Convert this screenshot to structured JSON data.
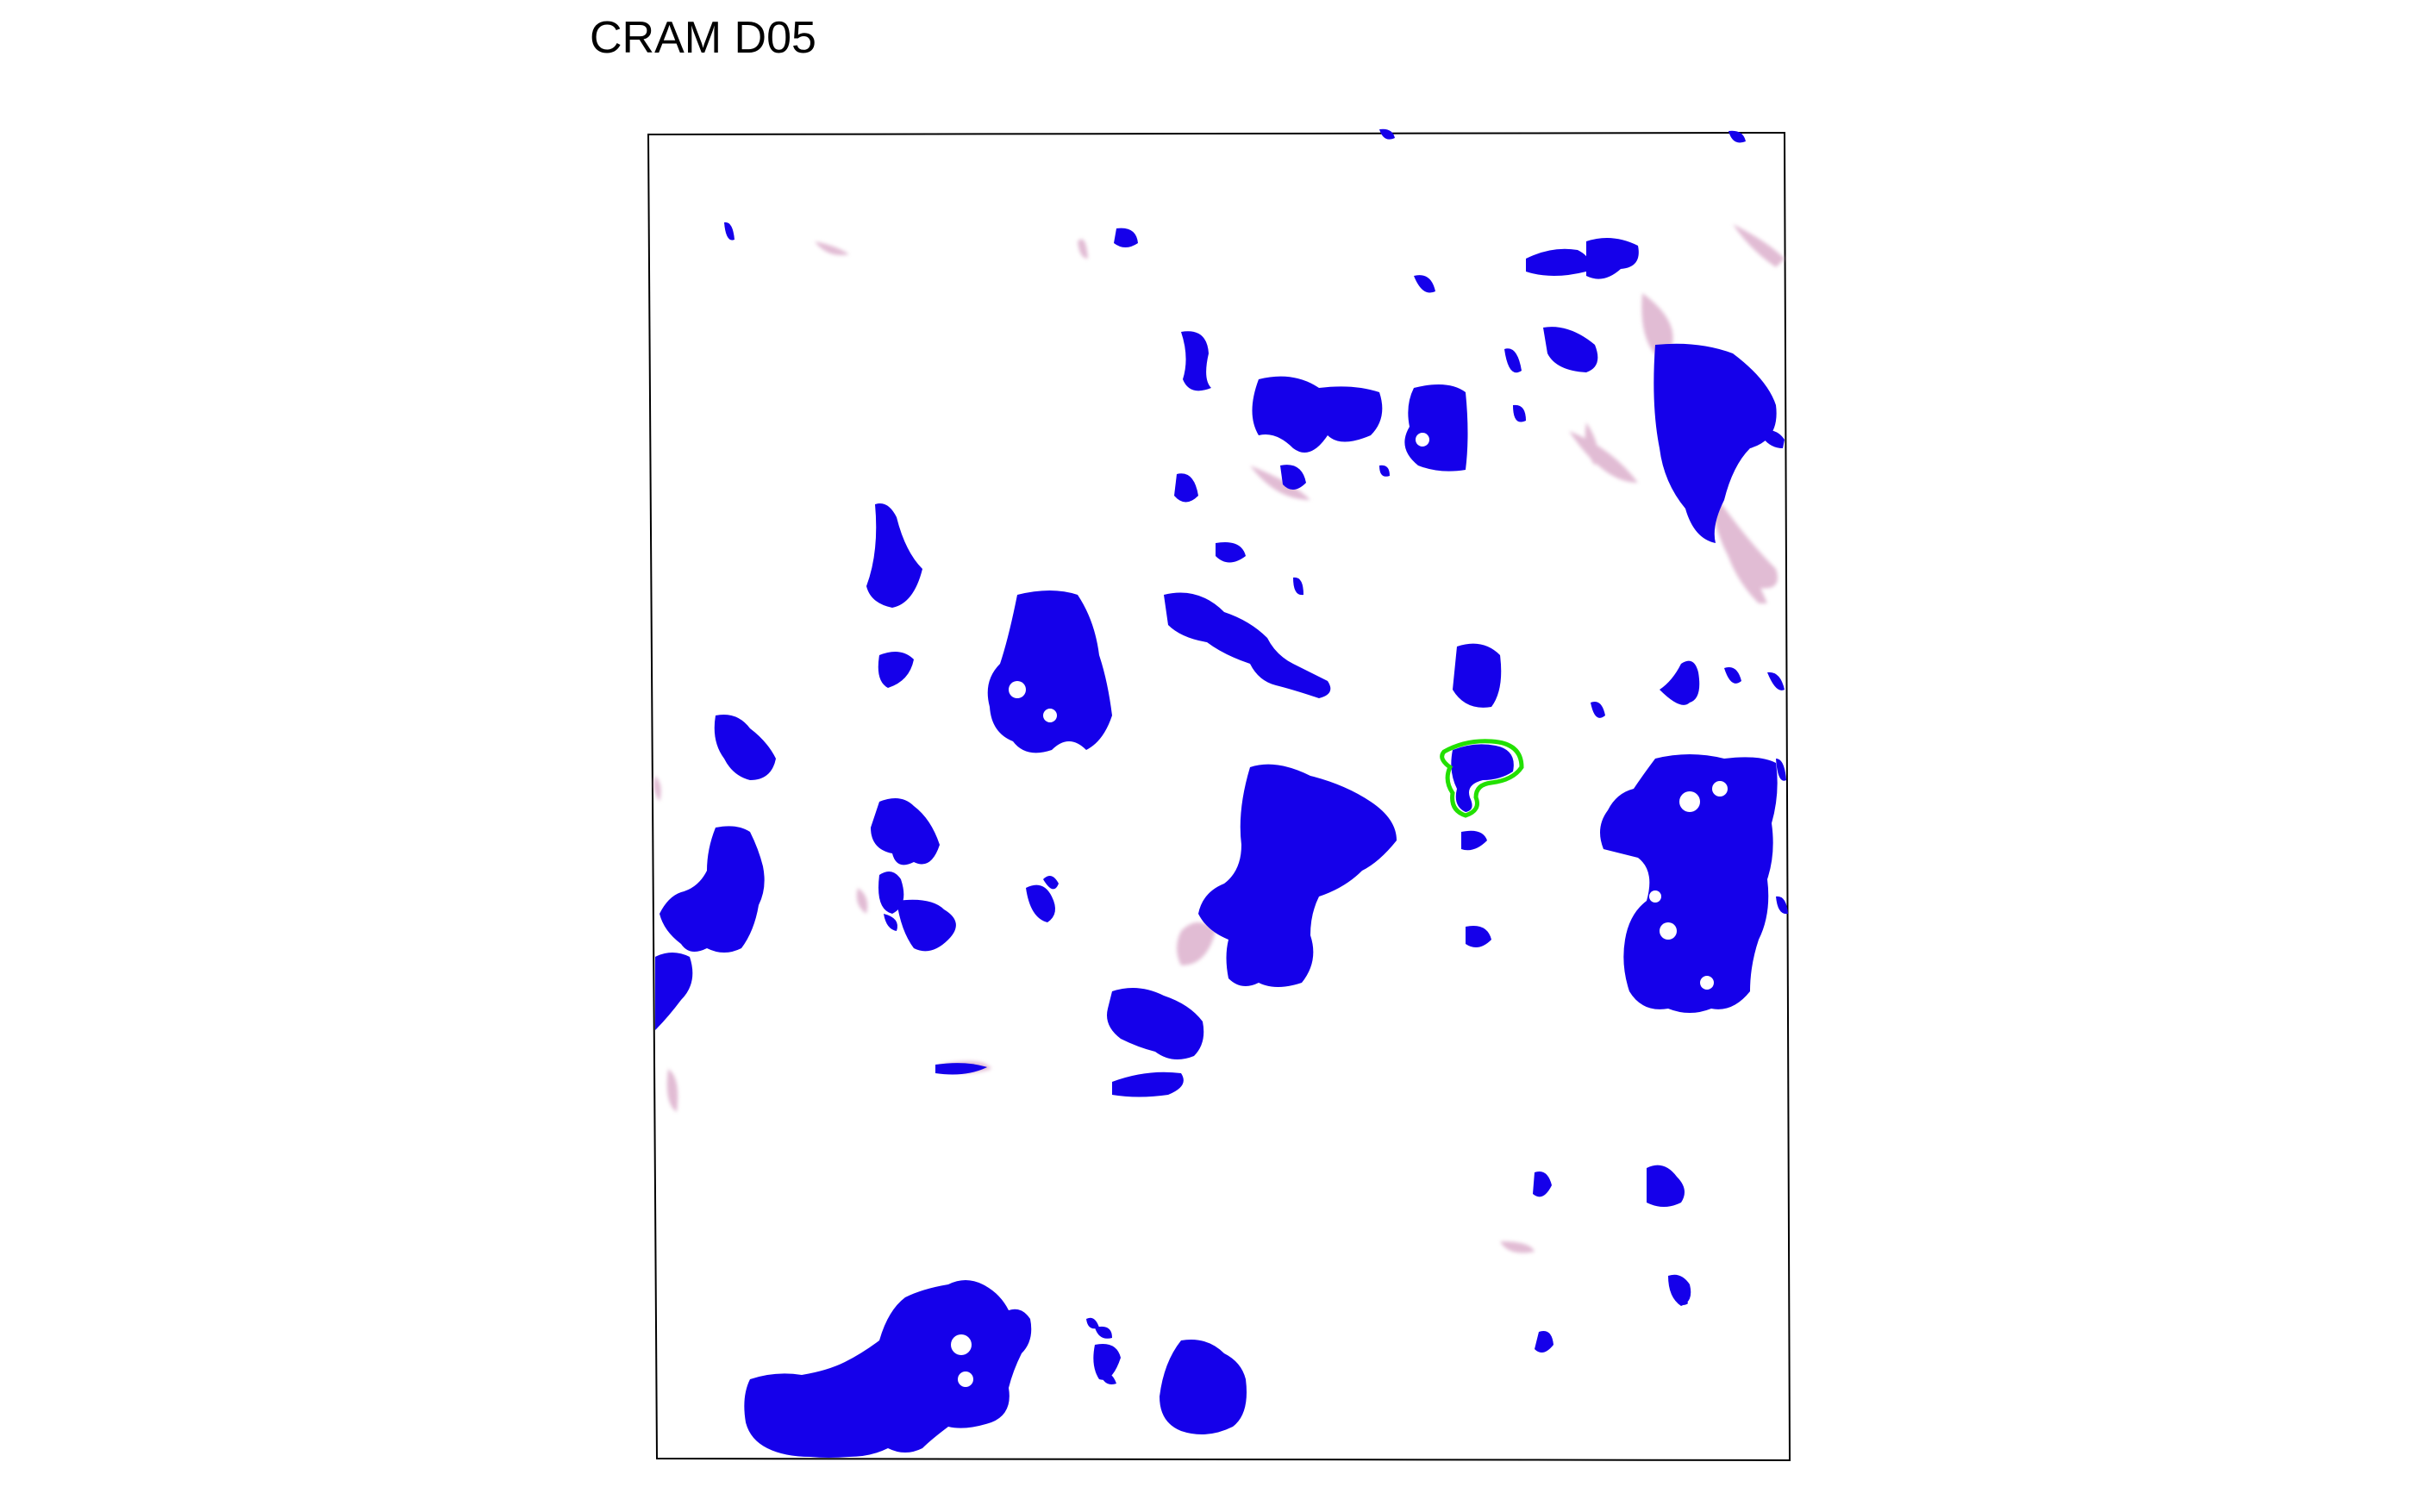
{
  "title": "CRAM D05",
  "colors": {
    "background": "#ffffff",
    "frame": "#000000",
    "tissue_blue": "#1500ea",
    "stain_pink": "#c98fb5",
    "highlight_outline": "#22e000"
  },
  "image": {
    "description_tags": [
      "blue-segmented-regions",
      "pink-stain",
      "green-outlined-region"
    ]
  }
}
